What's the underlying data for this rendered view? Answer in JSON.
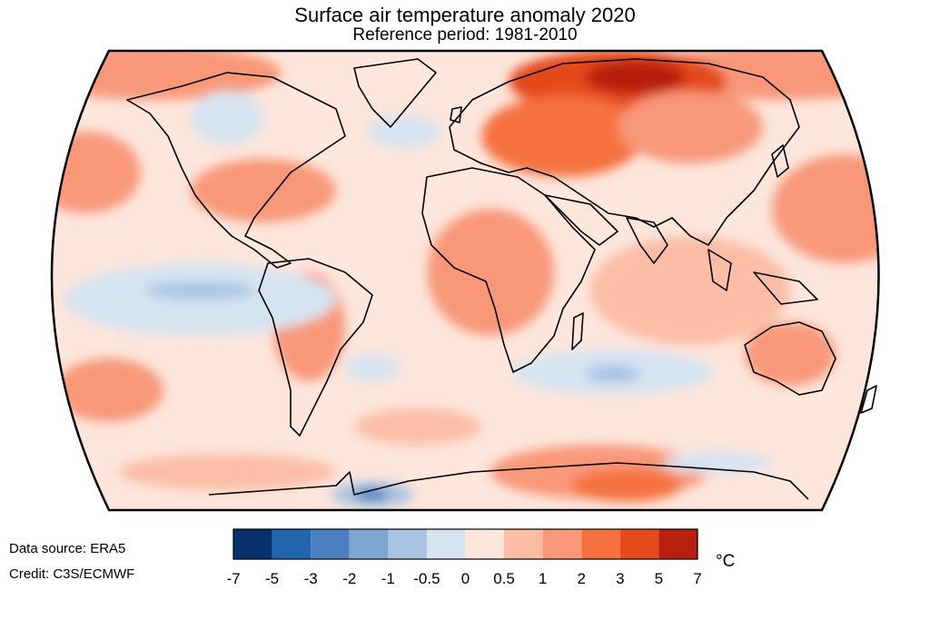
{
  "title": "Surface air temperature anomaly 2020",
  "subtitle": "Reference period: 1981-2010",
  "footer": {
    "source": "Data source: ERA5",
    "credit": "Credit: C3S/ECMWF"
  },
  "legend": {
    "unit": "°C",
    "ticks": [
      "-7",
      "-5",
      "-3",
      "-2",
      "-1",
      "-0.5",
      "0",
      "0.5",
      "1",
      "2",
      "3",
      "5",
      "7"
    ],
    "colors": [
      "#08306b",
      "#2166ac",
      "#4a80bf",
      "#7ea6d2",
      "#a9c4e2",
      "#d6e4f1",
      "#fde6dc",
      "#fbbda6",
      "#f89878",
      "#f5723f",
      "#e44a1c",
      "#b71f0e"
    ]
  }
}
